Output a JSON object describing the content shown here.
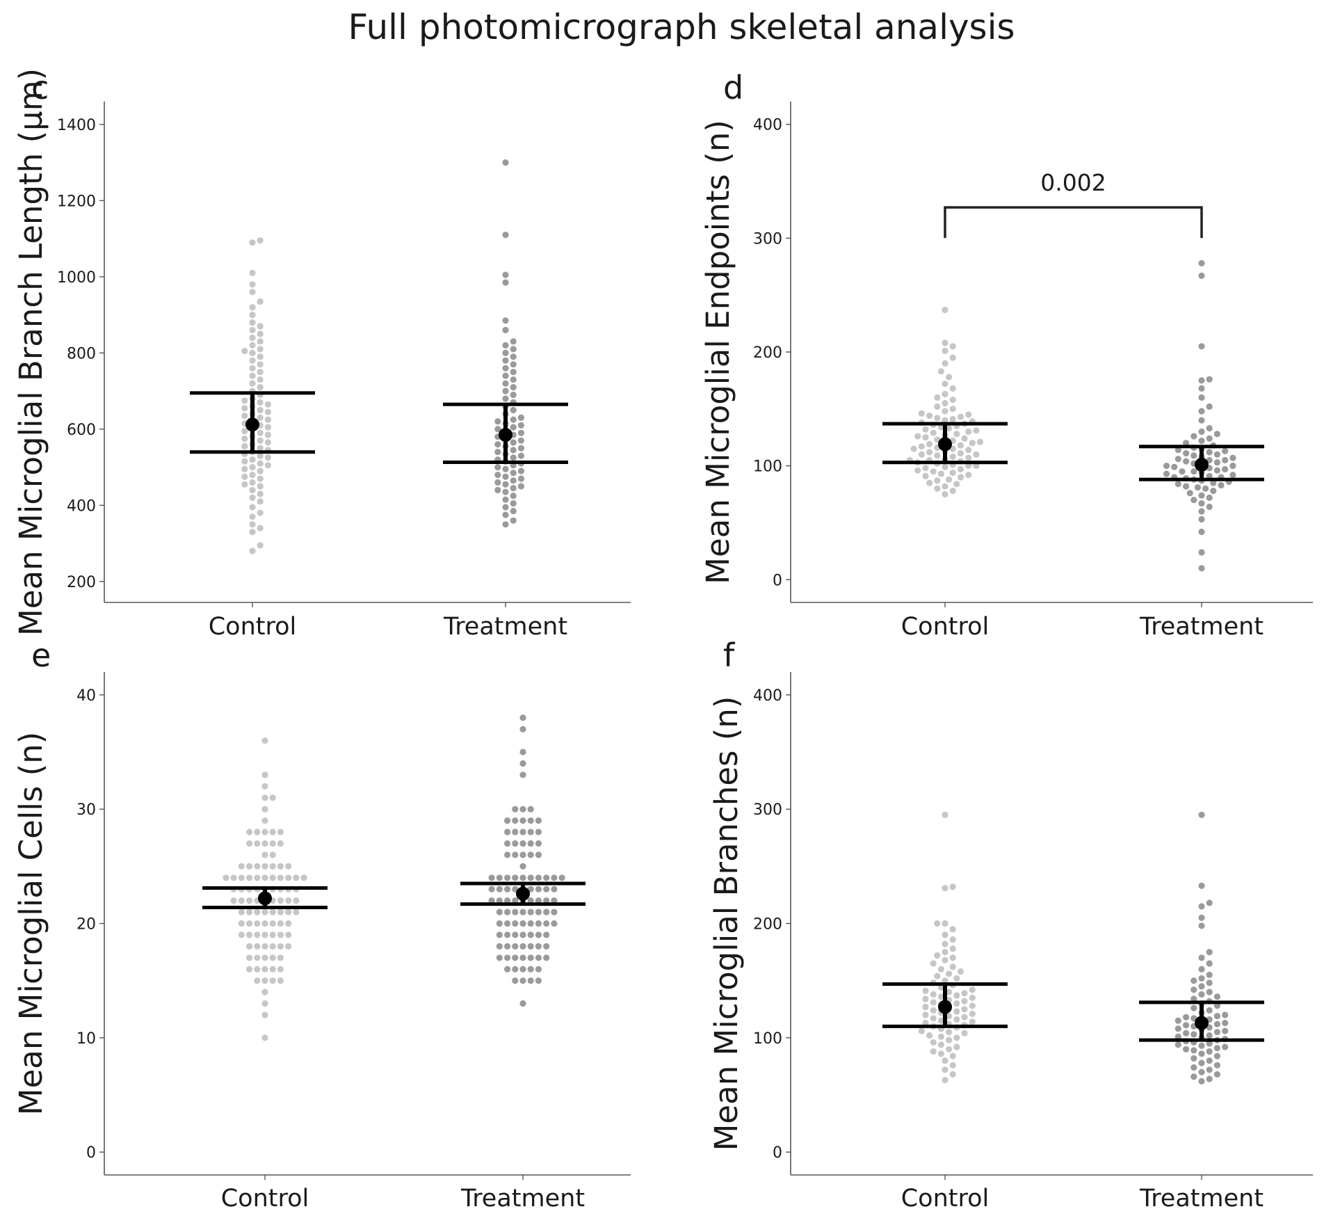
{
  "figure": {
    "title": "Full photomicrograph skeletal analysis"
  },
  "colors": {
    "control_points": "#c6c6c6",
    "treatment_points": "#9a9a9a",
    "summary": "#000000",
    "axis": "#555555"
  },
  "chart_data": [
    {
      "panel": "c",
      "type": "scatter",
      "style": "beeswarm with mean and error bars",
      "ylabel": "Mean Microglial Branch Length (μm)",
      "xlabel": "",
      "categories": [
        "Control",
        "Treatment"
      ],
      "ylim": [
        145,
        1460
      ],
      "yticks": [
        200,
        400,
        600,
        800,
        1000,
        1200,
        1400
      ],
      "ytick_labels": [
        "200",
        "400",
        "600",
        "800",
        "1000",
        "1200",
        "1400"
      ],
      "summary": [
        {
          "category": "Control",
          "mean": 612,
          "lower": 540,
          "upper": 695
        },
        {
          "category": "Treatment",
          "mean": 585,
          "lower": 513,
          "upper": 665
        }
      ],
      "series": [
        {
          "name": "Control",
          "values": [
            280,
            295,
            330,
            340,
            350,
            370,
            380,
            395,
            410,
            420,
            430,
            440,
            450,
            455,
            460,
            470,
            475,
            480,
            490,
            495,
            500,
            505,
            510,
            515,
            520,
            525,
            530,
            535,
            540,
            545,
            550,
            555,
            560,
            565,
            570,
            575,
            580,
            585,
            590,
            595,
            600,
            605,
            610,
            615,
            620,
            625,
            630,
            635,
            640,
            645,
            650,
            655,
            660,
            665,
            670,
            675,
            680,
            690,
            700,
            710,
            720,
            730,
            740,
            750,
            760,
            770,
            780,
            790,
            800,
            805,
            810,
            820,
            830,
            840,
            850,
            860,
            870,
            880,
            900,
            920,
            935,
            960,
            980,
            1010,
            1090,
            1095
          ]
        },
        {
          "name": "Treatment",
          "values": [
            350,
            360,
            375,
            385,
            395,
            405,
            415,
            425,
            435,
            440,
            445,
            450,
            455,
            460,
            465,
            470,
            475,
            480,
            485,
            490,
            495,
            500,
            505,
            510,
            515,
            520,
            525,
            530,
            535,
            540,
            545,
            550,
            555,
            560,
            565,
            570,
            575,
            580,
            585,
            590,
            595,
            600,
            605,
            610,
            615,
            620,
            625,
            630,
            640,
            650,
            660,
            670,
            680,
            690,
            700,
            710,
            720,
            730,
            740,
            750,
            760,
            770,
            780,
            790,
            800,
            810,
            820,
            830,
            860,
            885,
            985,
            1005,
            1110,
            1300
          ]
        }
      ]
    },
    {
      "panel": "d",
      "type": "scatter",
      "style": "beeswarm with mean and error bars",
      "ylabel": "Mean Microglial Endpoints (n)",
      "xlabel": "",
      "categories": [
        "Control",
        "Treatment"
      ],
      "ylim": [
        -20,
        420
      ],
      "yticks": [
        0,
        100,
        200,
        300,
        400
      ],
      "ytick_labels": [
        "0",
        "100",
        "200",
        "300",
        "400"
      ],
      "summary": [
        {
          "category": "Control",
          "mean": 119,
          "lower": 103,
          "upper": 137
        },
        {
          "category": "Treatment",
          "mean": 101,
          "lower": 88,
          "upper": 117
        }
      ],
      "annotations": [
        {
          "type": "significance-bracket",
          "between": [
            "Control",
            "Treatment"
          ],
          "y": 327,
          "label": "0.002"
        }
      ],
      "series": [
        {
          "name": "Control",
          "values": [
            75,
            78,
            80,
            82,
            84,
            85,
            87,
            88,
            90,
            91,
            92,
            93,
            94,
            95,
            96,
            97,
            98,
            99,
            100,
            100,
            101,
            102,
            103,
            104,
            105,
            105,
            106,
            107,
            108,
            109,
            110,
            110,
            111,
            112,
            113,
            114,
            115,
            115,
            116,
            117,
            118,
            119,
            120,
            120,
            121,
            122,
            123,
            124,
            125,
            126,
            127,
            128,
            129,
            130,
            131,
            132,
            133,
            134,
            135,
            136,
            137,
            138,
            139,
            140,
            141,
            142,
            143,
            144,
            145,
            146,
            148,
            150,
            152,
            155,
            158,
            160,
            163,
            168,
            172,
            178,
            183,
            190,
            195,
            201,
            205,
            208,
            237
          ]
        },
        {
          "name": "Treatment",
          "values": [
            10,
            24,
            42,
            53,
            60,
            64,
            67,
            70,
            72,
            74,
            76,
            78,
            80,
            81,
            82,
            83,
            84,
            85,
            86,
            87,
            88,
            89,
            90,
            90,
            91,
            92,
            93,
            94,
            95,
            95,
            96,
            97,
            98,
            99,
            100,
            100,
            101,
            102,
            103,
            104,
            105,
            105,
            106,
            107,
            108,
            109,
            110,
            111,
            112,
            113,
            114,
            115,
            116,
            118,
            120,
            122,
            124,
            126,
            128,
            130,
            133,
            140,
            148,
            152,
            160,
            168,
            175,
            176,
            205,
            267,
            278
          ]
        }
      ]
    },
    {
      "panel": "e",
      "type": "scatter",
      "style": "beeswarm with mean and error bars",
      "ylabel": "Mean Microglial Cells (n)",
      "xlabel": "",
      "categories": [
        "Control",
        "Treatment"
      ],
      "ylim": [
        -2,
        42
      ],
      "yticks": [
        0,
        10,
        20,
        30,
        40
      ],
      "ytick_labels": [
        "0",
        "10",
        "20",
        "30",
        "40"
      ],
      "summary": [
        {
          "category": "Control",
          "mean": 22.2,
          "lower": 21.4,
          "upper": 23.1
        },
        {
          "category": "Treatment",
          "mean": 22.6,
          "lower": 21.7,
          "upper": 23.5
        }
      ],
      "series": [
        {
          "name": "Control",
          "values": [
            10,
            12,
            13,
            14,
            15,
            15,
            15,
            15,
            16,
            16,
            16,
            16,
            16,
            17,
            17,
            17,
            17,
            17,
            18,
            18,
            18,
            18,
            18,
            18,
            19,
            19,
            19,
            19,
            19,
            19,
            19,
            20,
            20,
            20,
            20,
            20,
            20,
            20,
            21,
            21,
            21,
            21,
            21,
            21,
            21,
            21,
            22,
            22,
            22,
            22,
            22,
            22,
            22,
            22,
            22,
            23,
            23,
            23,
            23,
            23,
            23,
            23,
            23,
            23,
            24,
            24,
            24,
            24,
            24,
            24,
            24,
            24,
            24,
            24,
            24,
            25,
            25,
            25,
            25,
            25,
            25,
            25,
            26,
            26,
            27,
            27,
            27,
            27,
            27,
            28,
            28,
            28,
            28,
            28,
            29,
            30,
            31,
            31,
            32,
            33,
            36
          ]
        },
        {
          "name": "Treatment",
          "values": [
            13,
            15,
            15,
            15,
            15,
            16,
            16,
            16,
            16,
            16,
            17,
            17,
            17,
            17,
            17,
            17,
            17,
            18,
            18,
            18,
            18,
            18,
            18,
            18,
            19,
            19,
            19,
            19,
            19,
            19,
            19,
            20,
            20,
            20,
            20,
            20,
            20,
            20,
            20,
            21,
            21,
            21,
            21,
            21,
            21,
            21,
            21,
            22,
            22,
            22,
            22,
            22,
            22,
            22,
            22,
            22,
            23,
            23,
            23,
            23,
            23,
            23,
            23,
            23,
            23,
            24,
            24,
            24,
            24,
            24,
            24,
            24,
            24,
            24,
            24,
            25,
            26,
            26,
            26,
            26,
            26,
            27,
            27,
            27,
            27,
            27,
            28,
            28,
            28,
            28,
            28,
            29,
            29,
            29,
            29,
            29,
            30,
            30,
            30,
            33,
            34,
            35,
            37,
            38
          ]
        }
      ]
    },
    {
      "panel": "f",
      "type": "scatter",
      "style": "beeswarm with mean and error bars",
      "ylabel": "Mean Microglial Branches (n)",
      "xlabel": "",
      "categories": [
        "Control",
        "Treatment"
      ],
      "ylim": [
        -20,
        420
      ],
      "yticks": [
        0,
        100,
        200,
        300,
        400
      ],
      "ytick_labels": [
        "0",
        "100",
        "200",
        "300",
        "400"
      ],
      "summary": [
        {
          "category": "Control",
          "mean": 127,
          "lower": 110,
          "upper": 147
        },
        {
          "category": "Treatment",
          "mean": 113,
          "lower": 98,
          "upper": 131
        }
      ],
      "series": [
        {
          "name": "Control",
          "values": [
            63,
            68,
            72,
            76,
            80,
            84,
            86,
            88,
            90,
            92,
            94,
            96,
            98,
            100,
            101,
            102,
            104,
            105,
            106,
            108,
            109,
            110,
            111,
            112,
            113,
            114,
            115,
            116,
            117,
            118,
            119,
            120,
            121,
            122,
            123,
            124,
            125,
            126,
            127,
            128,
            129,
            130,
            131,
            132,
            133,
            134,
            135,
            136,
            137,
            138,
            139,
            140,
            141,
            142,
            144,
            146,
            148,
            150,
            152,
            154,
            156,
            158,
            160,
            162,
            165,
            168,
            170,
            172,
            175,
            178,
            182,
            186,
            190,
            195,
            200,
            200,
            231,
            232,
            295
          ]
        },
        {
          "name": "Treatment",
          "values": [
            62,
            64,
            66,
            68,
            70,
            72,
            74,
            76,
            78,
            80,
            82,
            84,
            86,
            88,
            89,
            90,
            91,
            92,
            93,
            94,
            95,
            96,
            97,
            98,
            99,
            100,
            101,
            102,
            103,
            104,
            105,
            106,
            107,
            108,
            109,
            110,
            111,
            112,
            113,
            114,
            115,
            116,
            117,
            118,
            119,
            120,
            122,
            124,
            126,
            128,
            130,
            132,
            134,
            136,
            138,
            140,
            142,
            145,
            148,
            150,
            152,
            155,
            160,
            165,
            170,
            175,
            198,
            205,
            215,
            218,
            233,
            295
          ]
        }
      ]
    }
  ]
}
